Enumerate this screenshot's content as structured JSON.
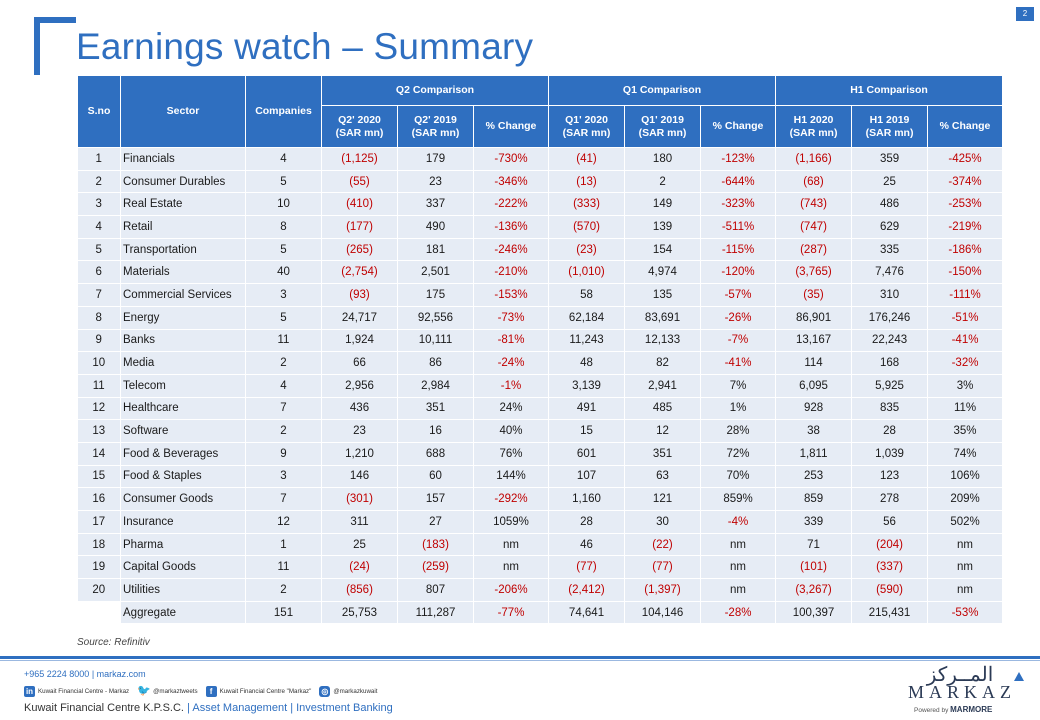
{
  "header": {
    "title": "Earnings watch – Summary",
    "page_number": "2"
  },
  "table": {
    "head": {
      "sno": "S.no",
      "sector": "Sector",
      "companies": "Companies",
      "groups": [
        "Q2 Comparison",
        "Q1 Comparison",
        "H1 Comparison"
      ],
      "subcols": [
        "Q2' 2020\n(SAR mn)",
        "Q2' 2019\n(SAR mn)",
        "% Change",
        "Q1' 2020\n(SAR mn)",
        "Q1' 2019\n(SAR mn)",
        "% Change",
        "H1 2020\n(SAR mn)",
        "H1 2019\n(SAR mn)",
        "% Change"
      ]
    },
    "rows": [
      [
        "1",
        "Financials",
        "4",
        "(1,125)",
        "179",
        "-730%",
        "(41)",
        "180",
        "-123%",
        "(1,166)",
        "359",
        "-425%"
      ],
      [
        "2",
        "Consumer Durables",
        "5",
        "(55)",
        "23",
        "-346%",
        "(13)",
        "2",
        "-644%",
        "(68)",
        "25",
        "-374%"
      ],
      [
        "3",
        "Real Estate",
        "10",
        "(410)",
        "337",
        "-222%",
        "(333)",
        "149",
        "-323%",
        "(743)",
        "486",
        "-253%"
      ],
      [
        "4",
        "Retail",
        "8",
        "(177)",
        "490",
        "-136%",
        "(570)",
        "139",
        "-511%",
        "(747)",
        "629",
        "-219%"
      ],
      [
        "5",
        "Transportation",
        "5",
        "(265)",
        "181",
        "-246%",
        "(23)",
        "154",
        "-115%",
        "(287)",
        "335",
        "-186%"
      ],
      [
        "6",
        "Materials",
        "40",
        "(2,754)",
        "2,501",
        "-210%",
        "(1,010)",
        "4,974",
        "-120%",
        "(3,765)",
        "7,476",
        "-150%"
      ],
      [
        "7",
        "Commercial Services",
        "3",
        "(93)",
        "175",
        "-153%",
        "58",
        "135",
        "-57%",
        "(35)",
        "310",
        "-111%"
      ],
      [
        "8",
        "Energy",
        "5",
        "24,717",
        "92,556",
        "-73%",
        "62,184",
        "83,691",
        "-26%",
        "86,901",
        "176,246",
        "-51%"
      ],
      [
        "9",
        "Banks",
        "11",
        "1,924",
        "10,111",
        "-81%",
        "11,243",
        "12,133",
        "-7%",
        "13,167",
        "22,243",
        "-41%"
      ],
      [
        "10",
        "Media",
        "2",
        "66",
        "86",
        "-24%",
        "48",
        "82",
        "-41%",
        "114",
        "168",
        "-32%"
      ],
      [
        "11",
        "Telecom",
        "4",
        "2,956",
        "2,984",
        "-1%",
        "3,139",
        "2,941",
        "7%",
        "6,095",
        "5,925",
        "3%"
      ],
      [
        "12",
        "Healthcare",
        "7",
        "436",
        "351",
        "24%",
        "491",
        "485",
        "1%",
        "928",
        "835",
        "11%"
      ],
      [
        "13",
        "Software",
        "2",
        "23",
        "16",
        "40%",
        "15",
        "12",
        "28%",
        "38",
        "28",
        "35%"
      ],
      [
        "14",
        "Food & Beverages",
        "9",
        "1,210",
        "688",
        "76%",
        "601",
        "351",
        "72%",
        "1,811",
        "1,039",
        "74%"
      ],
      [
        "15",
        "Food & Staples",
        "3",
        "146",
        "60",
        "144%",
        "107",
        "63",
        "70%",
        "253",
        "123",
        "106%"
      ],
      [
        "16",
        "Consumer Goods",
        "7",
        "(301)",
        "157",
        "-292%",
        "1,160",
        "121",
        "859%",
        "859",
        "278",
        "209%"
      ],
      [
        "17",
        "Insurance",
        "12",
        "311",
        "27",
        "1059%",
        "28",
        "30",
        "-4%",
        "339",
        "56",
        "502%"
      ],
      [
        "18",
        "Pharma",
        "1",
        "25",
        "(183)",
        "nm",
        "46",
        "(22)",
        "nm",
        "71",
        "(204)",
        "nm"
      ],
      [
        "19",
        "Capital Goods",
        "11",
        "(24)",
        "(259)",
        "nm",
        "(77)",
        "(77)",
        "nm",
        "(101)",
        "(337)",
        "nm"
      ],
      [
        "20",
        "Utilities",
        "2",
        "(856)",
        "807",
        "-206%",
        "(2,412)",
        "(1,397)",
        "nm",
        "(3,267)",
        "(590)",
        "nm"
      ],
      [
        "",
        "Aggregate",
        "151",
        "25,753",
        "111,287",
        "-77%",
        "74,641",
        "104,146",
        "-28%",
        "100,397",
        "215,431",
        "-53%"
      ]
    ]
  },
  "source_note": "Source: Refinitiv",
  "footer": {
    "contact": "+965 2224 8000 | markaz.com",
    "social": [
      {
        "icon": "linkedin-icon",
        "glyph": "in",
        "label": "Kuwait Financial Centre - Markaz"
      },
      {
        "icon": "twitter-icon",
        "glyph": "🐦",
        "label": "@markaztweets"
      },
      {
        "icon": "facebook-icon",
        "glyph": "f",
        "label": "Kuwait Financial Centre \"Markaz\""
      },
      {
        "icon": "instagram-icon",
        "glyph": "◎",
        "label": "@markazkuwait"
      }
    ],
    "company": "Kuwait Financial Centre K.P.S.C.",
    "divider": "|",
    "asset_management": "Asset Management",
    "investment_banking": "Investment Banking"
  },
  "logo": {
    "arabic": "المــركز",
    "name": "MARKAZ",
    "powered_by": "Powered by",
    "powered_brand": "MARMORE"
  },
  "colors": {
    "brand_blue": "#2f6fc0",
    "row_band": "#e6ecf5",
    "negative_red": "#c00000"
  }
}
